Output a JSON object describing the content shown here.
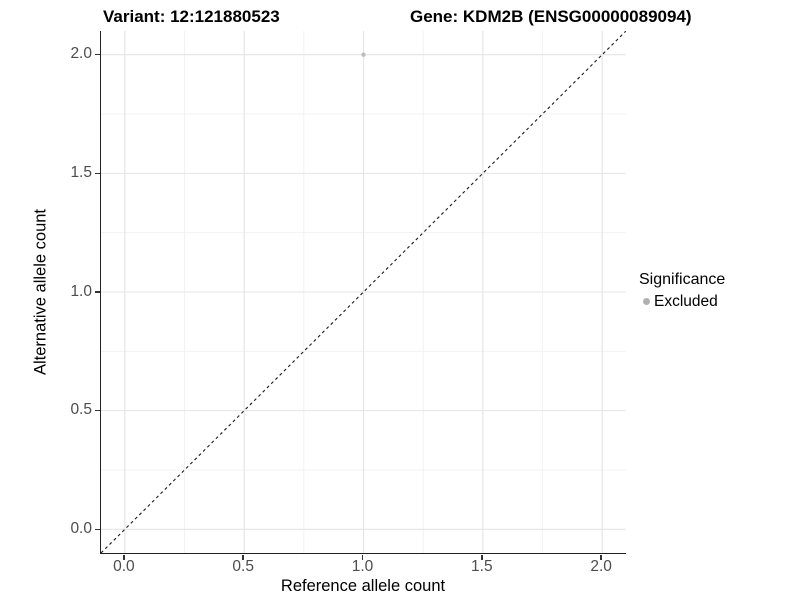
{
  "header": {
    "variant_title": "Variant: 12:121880523",
    "gene_title": "Gene: KDM2B (ENSG00000089094)"
  },
  "chart_data": {
    "type": "scatter",
    "xlabel": "Reference allele count",
    "ylabel": "Alternative allele count",
    "xlim": [
      -0.1,
      2.1
    ],
    "ylim": [
      -0.1,
      2.1
    ],
    "xticks": [
      0.0,
      0.5,
      1.0,
      1.5,
      2.0
    ],
    "yticks": [
      0.0,
      0.5,
      1.0,
      1.5,
      2.0
    ],
    "minor_xticks": [
      0.25,
      0.75,
      1.25,
      1.75
    ],
    "minor_yticks": [
      0.25,
      0.75,
      1.25,
      1.75
    ],
    "tick_decimals": 1,
    "grid": true,
    "series": [
      {
        "name": "Excluded",
        "color": "#bdbdbd",
        "point_radius": 2.2,
        "points": [
          {
            "x": 1.0,
            "y": 2.0
          }
        ]
      }
    ],
    "reference_line": {
      "style": "dashed",
      "color": "#1a1a1a",
      "from": [
        -0.1,
        -0.1
      ],
      "to": [
        2.1,
        2.1
      ]
    },
    "legend_position": "right"
  },
  "legend": {
    "title": "Significance",
    "entries": [
      {
        "label": "Excluded",
        "color": "#b0b0b0"
      }
    ]
  },
  "colors": {
    "background": "#ffffff",
    "grid_major": "#e4e4e4",
    "grid_minor": "#f1f1f1",
    "axis_line": "#222222",
    "tick_label": "#4d4d4d",
    "point": "#bdbdbd"
  }
}
